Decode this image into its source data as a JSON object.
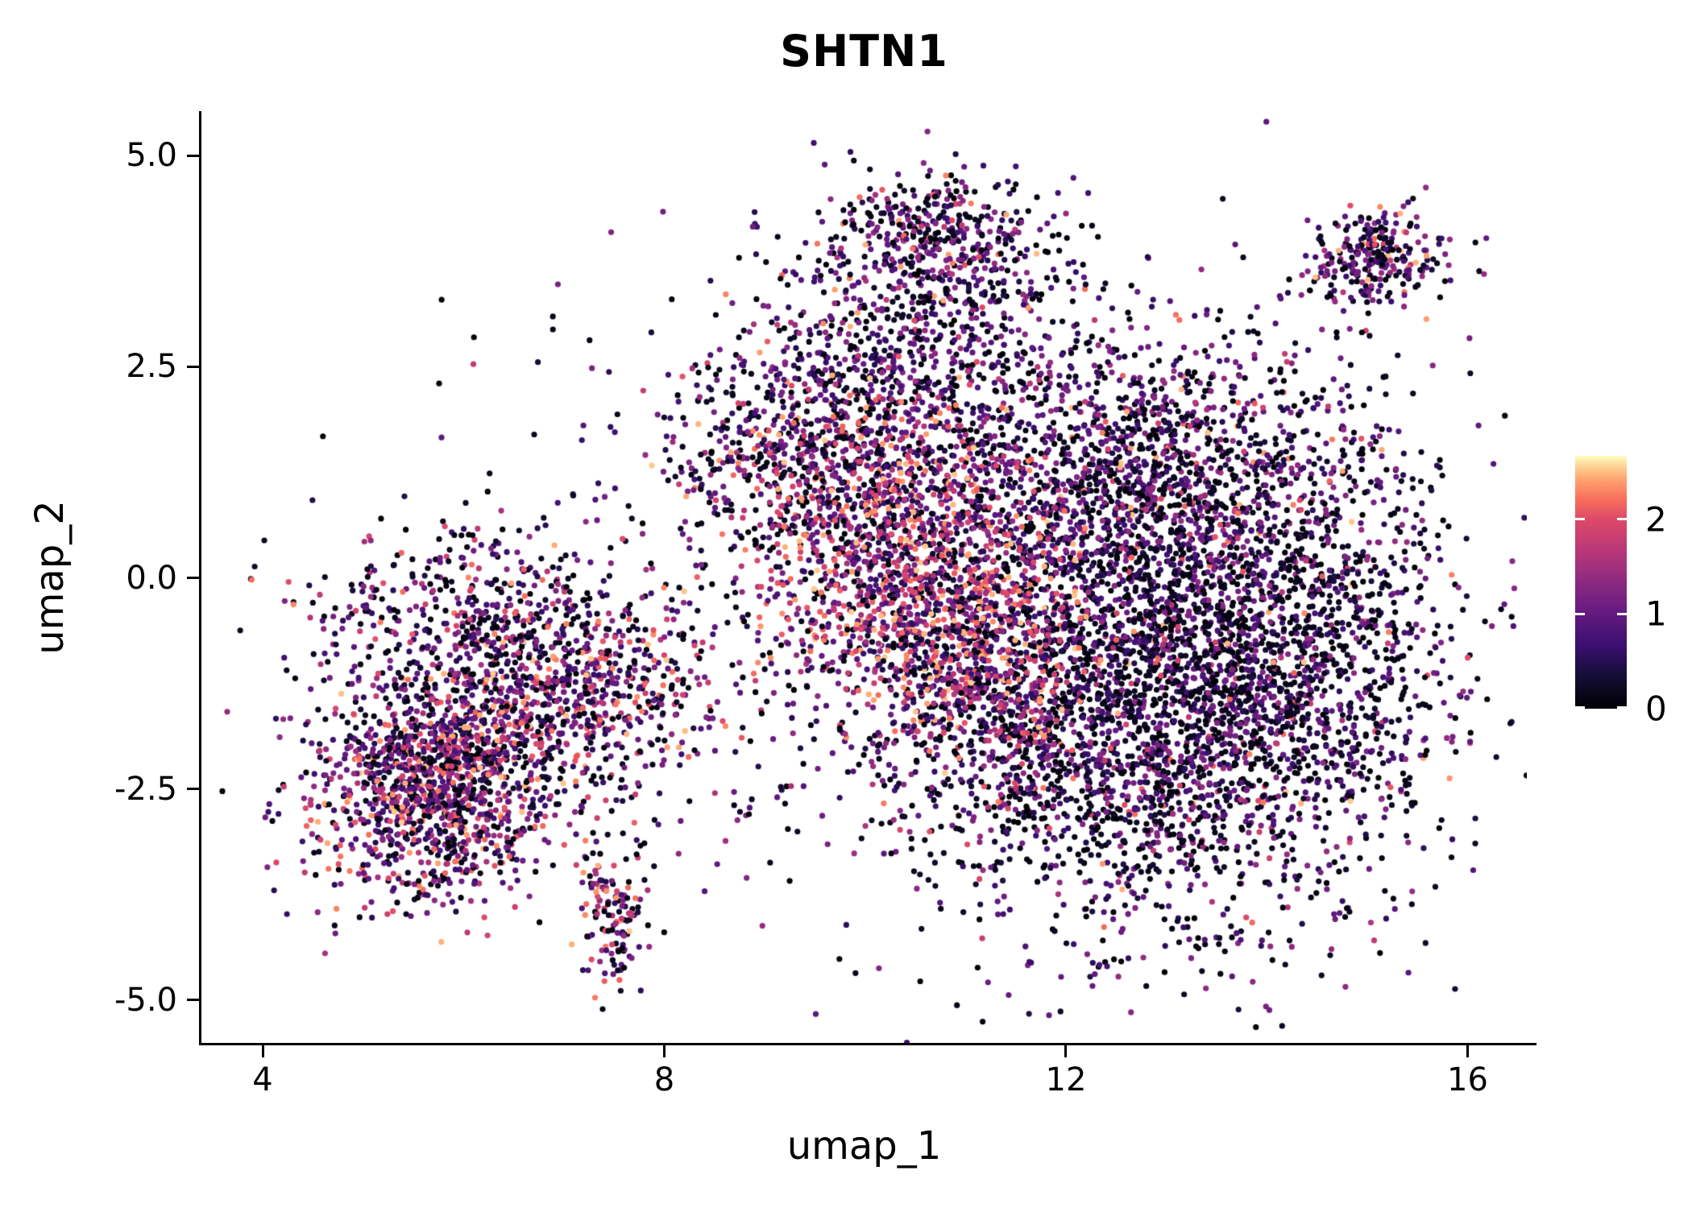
{
  "chart_data": {
    "type": "scatter",
    "title": "SHTN1",
    "xlabel": "umap_1",
    "ylabel": "umap_2",
    "xlim": [
      3.39,
      16.59
    ],
    "ylim": [
      -5.51,
      5.51
    ],
    "grid": false,
    "legend_position": "right",
    "x_ticks": [
      {
        "value": 4,
        "label": "4"
      },
      {
        "value": 8,
        "label": "8"
      },
      {
        "value": 12,
        "label": "12"
      },
      {
        "value": 16,
        "label": "16"
      }
    ],
    "y_ticks": [
      {
        "value": 5.0,
        "label": "5.0"
      },
      {
        "value": 2.5,
        "label": "2.5"
      },
      {
        "value": 0.0,
        "label": "0.0"
      },
      {
        "value": -2.5,
        "label": "-2.5"
      },
      {
        "value": -5.0,
        "label": "-5.0"
      }
    ],
    "colorbar": {
      "domain": [
        0,
        2.67
      ],
      "ticks": [
        {
          "value": 2,
          "label": "2"
        },
        {
          "value": 1,
          "label": "1"
        },
        {
          "value": 0,
          "label": "0"
        }
      ]
    },
    "colormap_name": "magma",
    "colormap": [
      {
        "t": 0.0,
        "color": "#000004"
      },
      {
        "t": 0.13,
        "color": "#140e36"
      },
      {
        "t": 0.25,
        "color": "#3b0f70"
      },
      {
        "t": 0.38,
        "color": "#641a80"
      },
      {
        "t": 0.5,
        "color": "#8c2981"
      },
      {
        "t": 0.62,
        "color": "#b73779"
      },
      {
        "t": 0.75,
        "color": "#de4968"
      },
      {
        "t": 0.83,
        "color": "#f7705c"
      },
      {
        "t": 0.9,
        "color": "#fe9f6d"
      },
      {
        "t": 0.95,
        "color": "#fec98d"
      },
      {
        "t": 1.0,
        "color": "#fcfdbf"
      }
    ],
    "point_radius_px": 3.6,
    "n_points_approx": 12000,
    "expression_bands": {
      "low": [
        0,
        0.28
      ],
      "mid": [
        0.38,
        1.42
      ],
      "high": [
        1.42,
        2.55
      ]
    },
    "expression_profiles": {
      "warm": [
        0.18,
        0.37,
        0.45
      ],
      "mixed_warm": [
        0.27,
        0.45,
        0.28
      ],
      "mixed": [
        0.4,
        0.45,
        0.15
      ],
      "purple": [
        0.4,
        0.52,
        0.08
      ],
      "dark": [
        0.52,
        0.43,
        0.05
      ]
    },
    "clusters": [
      {
        "name": "field",
        "n": 520,
        "cx": 9.6,
        "cy": -0.4,
        "sx": 2.4,
        "sy": 2.0,
        "expr": "mixed"
      },
      {
        "name": "left-lower",
        "n": 1250,
        "cx": 5.7,
        "cy": -2.45,
        "sx": 0.62,
        "sy": 0.68,
        "expr": "mixed_warm"
      },
      {
        "name": "left-upper",
        "n": 850,
        "cx": 6.9,
        "cy": -1.35,
        "sx": 0.75,
        "sy": 0.65,
        "expr": "mixed_warm"
      },
      {
        "name": "left-arm",
        "n": 320,
        "cx": 6.0,
        "cy": -0.35,
        "sx": 0.8,
        "sy": 0.45,
        "expr": "mixed"
      },
      {
        "name": "left-tail",
        "n": 140,
        "cx": 7.5,
        "cy": -4.0,
        "sx": 0.18,
        "sy": 0.45,
        "expr": "mixed_warm"
      },
      {
        "name": "right-main",
        "n": 3300,
        "cx": 12.9,
        "cy": -1.5,
        "sx": 1.25,
        "sy": 1.3,
        "expr": "dark"
      },
      {
        "name": "right-edge",
        "n": 520,
        "cx": 14.55,
        "cy": -0.6,
        "sx": 0.7,
        "sy": 1.25,
        "expr": "dark"
      },
      {
        "name": "right-upper",
        "n": 1500,
        "cx": 12.75,
        "cy": 1.25,
        "sx": 1.1,
        "sy": 0.9,
        "expr": "purple"
      },
      {
        "name": "satellite",
        "n": 280,
        "cx": 15.1,
        "cy": 3.8,
        "sx": 0.36,
        "sy": 0.28,
        "expr": "mixed"
      },
      {
        "name": "top-column",
        "n": 620,
        "cx": 10.45,
        "cy": 2.9,
        "sx": 0.75,
        "sy": 0.85,
        "expr": "purple"
      },
      {
        "name": "top-blob",
        "n": 330,
        "cx": 10.7,
        "cy": 4.05,
        "sx": 0.62,
        "sy": 0.38,
        "expr": "purple"
      },
      {
        "name": "mid-upper",
        "n": 520,
        "cx": 9.35,
        "cy": 1.55,
        "sx": 0.7,
        "sy": 0.6,
        "expr": "mixed"
      },
      {
        "name": "mid-hot",
        "n": 1300,
        "cx": 10.35,
        "cy": 0.2,
        "sx": 0.78,
        "sy": 0.9,
        "expr": "warm"
      },
      {
        "name": "mid-hot-lower",
        "n": 520,
        "cx": 11.15,
        "cy": -1.05,
        "sx": 0.55,
        "sy": 0.75,
        "expr": "warm"
      }
    ]
  }
}
